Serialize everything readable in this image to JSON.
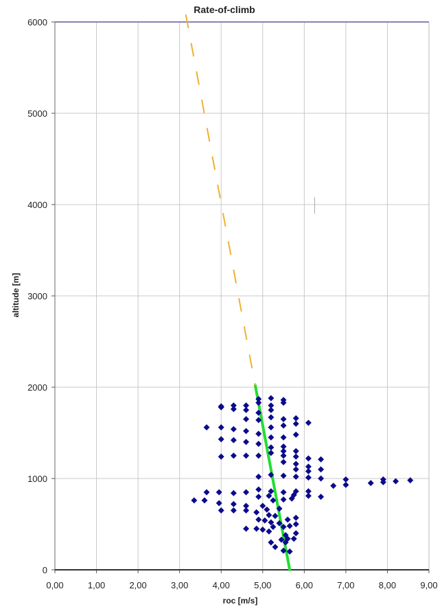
{
  "chart_data": {
    "type": "scatter",
    "title": "Rate-of-climb",
    "xlabel": "roc [m/s]",
    "ylabel": "altitude [m]",
    "xlim": [
      0,
      9
    ],
    "ylim": [
      0,
      6000
    ],
    "xticks": [
      "0,00",
      "1,00",
      "2,00",
      "3,00",
      "4,00",
      "5,00",
      "6,00",
      "7,00",
      "8,00",
      "9,00"
    ],
    "yticks": [
      "0",
      "1000",
      "2000",
      "3000",
      "4000",
      "5000",
      "6000"
    ],
    "grid": true,
    "colors": {
      "points": "#0b0b8c",
      "fit": "#22dd33",
      "extrapolation": "#f0b030",
      "grid": "#c8c8c8",
      "frame": "#5a5a9a"
    },
    "series": [
      {
        "kind": "points",
        "points": [
          [
            5.65,
            200
          ],
          [
            5.5,
            210
          ],
          [
            5.3,
            250
          ],
          [
            5.2,
            300
          ],
          [
            5.55,
            300
          ],
          [
            5.45,
            330
          ],
          [
            5.6,
            340
          ],
          [
            5.75,
            340
          ],
          [
            5.55,
            380
          ],
          [
            5.8,
            400
          ],
          [
            5.15,
            420
          ],
          [
            5.0,
            440
          ],
          [
            4.85,
            450
          ],
          [
            4.6,
            450
          ],
          [
            5.25,
            470
          ],
          [
            5.5,
            470
          ],
          [
            5.65,
            480
          ],
          [
            5.8,
            500
          ],
          [
            5.4,
            510
          ],
          [
            5.2,
            520
          ],
          [
            5.05,
            540
          ],
          [
            4.9,
            550
          ],
          [
            5.6,
            550
          ],
          [
            5.8,
            570
          ],
          [
            5.3,
            590
          ],
          [
            5.15,
            600
          ],
          [
            4.85,
            630
          ],
          [
            4.6,
            650
          ],
          [
            4.3,
            650
          ],
          [
            4.0,
            650
          ],
          [
            5.1,
            660
          ],
          [
            5.4,
            670
          ],
          [
            5.0,
            700
          ],
          [
            4.6,
            700
          ],
          [
            4.3,
            720
          ],
          [
            3.95,
            730
          ],
          [
            3.6,
            760
          ],
          [
            3.35,
            760
          ],
          [
            5.25,
            760
          ],
          [
            5.5,
            770
          ],
          [
            5.7,
            780
          ],
          [
            4.9,
            800
          ],
          [
            5.15,
            810
          ],
          [
            6.1,
            810
          ],
          [
            6.4,
            800
          ],
          [
            5.75,
            820
          ],
          [
            4.3,
            840
          ],
          [
            3.95,
            850
          ],
          [
            3.65,
            850
          ],
          [
            4.6,
            850
          ],
          [
            4.9,
            880
          ],
          [
            5.2,
            860
          ],
          [
            5.5,
            850
          ],
          [
            5.8,
            860
          ],
          [
            6.1,
            860
          ],
          [
            6.7,
            920
          ],
          [
            7.0,
            930
          ],
          [
            7.6,
            950
          ],
          [
            7.9,
            960
          ],
          [
            8.2,
            970
          ],
          [
            8.55,
            980
          ],
          [
            7.0,
            990
          ],
          [
            7.9,
            990
          ],
          [
            6.4,
            1000
          ],
          [
            6.1,
            1010
          ],
          [
            5.8,
            1020
          ],
          [
            5.5,
            1030
          ],
          [
            5.2,
            1040
          ],
          [
            4.9,
            1020
          ],
          [
            6.1,
            1080
          ],
          [
            5.8,
            1100
          ],
          [
            6.4,
            1100
          ],
          [
            6.1,
            1130
          ],
          [
            5.8,
            1160
          ],
          [
            5.5,
            1180
          ],
          [
            6.4,
            1210
          ],
          [
            6.1,
            1220
          ],
          [
            5.8,
            1240
          ],
          [
            5.5,
            1250
          ],
          [
            4.9,
            1250
          ],
          [
            4.6,
            1250
          ],
          [
            4.3,
            1250
          ],
          [
            4.0,
            1240
          ],
          [
            5.2,
            1280
          ],
          [
            5.5,
            1300
          ],
          [
            5.8,
            1300
          ],
          [
            5.2,
            1340
          ],
          [
            5.5,
            1350
          ],
          [
            4.9,
            1380
          ],
          [
            4.6,
            1400
          ],
          [
            4.3,
            1420
          ],
          [
            4.0,
            1430
          ],
          [
            5.2,
            1450
          ],
          [
            5.5,
            1450
          ],
          [
            5.8,
            1480
          ],
          [
            4.9,
            1490
          ],
          [
            4.6,
            1520
          ],
          [
            4.3,
            1540
          ],
          [
            4.0,
            1560
          ],
          [
            3.65,
            1560
          ],
          [
            5.2,
            1560
          ],
          [
            5.5,
            1580
          ],
          [
            5.8,
            1600
          ],
          [
            6.1,
            1610
          ],
          [
            4.9,
            1640
          ],
          [
            4.6,
            1650
          ],
          [
            5.2,
            1670
          ],
          [
            5.5,
            1650
          ],
          [
            5.8,
            1660
          ],
          [
            4.9,
            1720
          ],
          [
            4.6,
            1750
          ],
          [
            4.3,
            1760
          ],
          [
            4.0,
            1780
          ],
          [
            5.2,
            1750
          ],
          [
            5.5,
            1830
          ],
          [
            4.9,
            1830
          ],
          [
            4.6,
            1800
          ],
          [
            5.2,
            1800
          ],
          [
            4.3,
            1800
          ],
          [
            4.0,
            1790
          ],
          [
            5.2,
            1880
          ],
          [
            4.9,
            1870
          ],
          [
            5.5,
            1860
          ]
        ]
      },
      {
        "kind": "fit-line",
        "points": [
          [
            4.82,
            2020
          ],
          [
            5.65,
            0
          ]
        ]
      },
      {
        "kind": "extrapolation-dashed",
        "points": [
          [
            3.15,
            6080
          ],
          [
            4.82,
            2020
          ]
        ]
      }
    ],
    "annotations": [
      {
        "kind": "tiny-vertical-mark",
        "x": 6.25,
        "y": 3900
      }
    ]
  }
}
